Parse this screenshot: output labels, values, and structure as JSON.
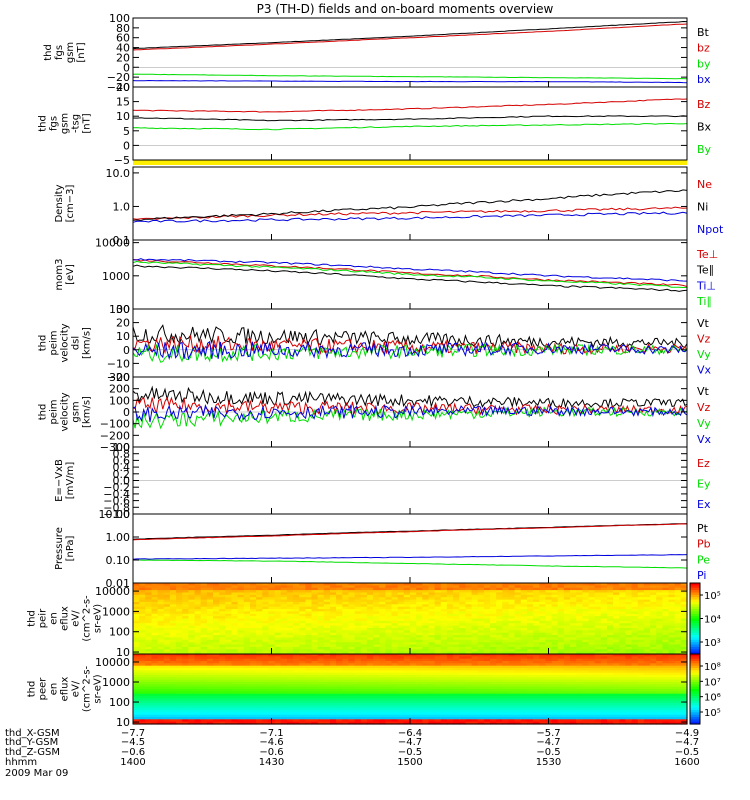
{
  "title": "P3 (TH-D) fields and on-board moments overview",
  "colors": {
    "black": "#000000",
    "red": "#d40000",
    "green": "#00dd00",
    "blue": "#0000dd",
    "yellow": "#ffee00"
  },
  "chart_data": [
    {
      "type": "line",
      "ylabel": [
        "thd",
        "fgs",
        "gsm",
        "[nT]"
      ],
      "ylim": [
        -40,
        100
      ],
      "yticks": [
        100,
        80,
        60,
        40,
        20,
        0,
        -20,
        -40
      ],
      "ytick_labels": [
        "100",
        "80",
        "60",
        "40",
        "20",
        "0",
        "−20",
        "−40"
      ],
      "series": [
        {
          "name": "Bt",
          "color": "black",
          "values": [
            38,
            50,
            63,
            78,
            93
          ]
        },
        {
          "name": "bz",
          "color": "red",
          "values": [
            35,
            47,
            60,
            73,
            88
          ]
        },
        {
          "name": "by",
          "color": "green",
          "values": [
            -14,
            -17,
            -19,
            -21,
            -23
          ]
        },
        {
          "name": "bx",
          "color": "blue",
          "values": [
            -27,
            -28,
            -29,
            -29,
            -31
          ]
        }
      ]
    },
    {
      "type": "line",
      "ylabel": [
        "thd",
        "fgs",
        "gsm",
        "-tsg",
        "[nT]"
      ],
      "ylim": [
        -5,
        20
      ],
      "yticks": [
        20,
        15,
        10,
        5,
        0,
        -5
      ],
      "ytick_labels": [
        "20",
        "15",
        "10",
        "5",
        "0",
        "−5"
      ],
      "series": [
        {
          "name": "Bz",
          "color": "red",
          "values": [
            12,
            11.5,
            12.5,
            14,
            16
          ]
        },
        {
          "name": "Bx",
          "color": "black",
          "values": [
            9.5,
            8.5,
            9,
            10,
            10
          ]
        },
        {
          "name": "By",
          "color": "green",
          "values": [
            6,
            5.5,
            6.5,
            7,
            7.5
          ]
        }
      ]
    },
    {
      "type": "line",
      "ylabel": [
        "Density",
        "[cm−3]"
      ],
      "yscale": "log",
      "ylim": [
        0.1,
        15
      ],
      "yticks": [
        10,
        1,
        0.1
      ],
      "ytick_labels": [
        "10.0",
        "1.0",
        "0.1"
      ],
      "series": [
        {
          "name": "Ne",
          "color": "red",
          "values": [
            0.4,
            0.55,
            0.65,
            0.75,
            0.9
          ]
        },
        {
          "name": "Ni",
          "color": "black",
          "values": [
            0.4,
            0.6,
            0.95,
            1.7,
            3
          ]
        },
        {
          "name": "Npot",
          "color": "blue",
          "values": [
            0.35,
            0.4,
            0.45,
            0.55,
            0.65
          ]
        }
      ]
    },
    {
      "type": "line",
      "ylabel": [
        "mom3",
        "[eV]"
      ],
      "yscale": "log",
      "ylim": [
        100,
        12000
      ],
      "yticks": [
        10000,
        1000,
        100
      ],
      "ytick_labels": [
        "10000",
        "1000",
        "100"
      ],
      "series": [
        {
          "name": "Te⊥",
          "color": "red",
          "values": [
            3000,
            2000,
            1200,
            750,
            500
          ]
        },
        {
          "name": "Te∥",
          "color": "black",
          "values": [
            2000,
            1400,
            800,
            500,
            350
          ]
        },
        {
          "name": "Ti⊥",
          "color": "blue",
          "values": [
            3200,
            2500,
            1600,
            1000,
            700
          ]
        },
        {
          "name": "Ti∥",
          "color": "green",
          "values": [
            2600,
            1800,
            1100,
            700,
            450
          ]
        }
      ]
    },
    {
      "type": "line",
      "ylabel": [
        "thd",
        "peim",
        "velocity",
        "dsl",
        "[km/s]"
      ],
      "ylim": [
        -20,
        30
      ],
      "yticks": [
        30,
        20,
        10,
        0,
        -10,
        -20
      ],
      "ytick_labels": [
        "30",
        "20",
        "10",
        "0",
        "−10",
        "−20"
      ],
      "series": [
        {
          "name": "Vt",
          "color": "black",
          "values": [
            12,
            10,
            8,
            6,
            5
          ]
        },
        {
          "name": "Vz",
          "color": "red",
          "values": [
            5,
            3,
            2,
            1,
            1
          ]
        },
        {
          "name": "Vy",
          "color": "green",
          "values": [
            -3,
            -2,
            -1,
            0,
            0
          ]
        },
        {
          "name": "Vx",
          "color": "blue",
          "values": [
            -1,
            0,
            0,
            1,
            0
          ]
        }
      ]
    },
    {
      "type": "line",
      "ylabel": [
        "thd",
        "peim",
        "velocity",
        "gsm",
        "[km/s]"
      ],
      "ylim": [
        -300,
        300
      ],
      "yticks": [
        300,
        200,
        100,
        0,
        -100,
        -200,
        -300
      ],
      "ytick_labels": [
        "300",
        "200",
        "100",
        "0",
        "−100",
        "−200",
        "−300"
      ],
      "series": [
        {
          "name": "Vt",
          "color": "black",
          "values": [
            150,
            120,
            100,
            80,
            80
          ]
        },
        {
          "name": "Vz",
          "color": "red",
          "values": [
            60,
            40,
            30,
            20,
            20
          ]
        },
        {
          "name": "Vy",
          "color": "green",
          "values": [
            -80,
            -40,
            -20,
            0,
            0
          ]
        },
        {
          "name": "Vx",
          "color": "blue",
          "values": [
            -20,
            0,
            0,
            10,
            0
          ]
        }
      ]
    },
    {
      "type": "line",
      "ylabel": [
        "E=−VxB",
        "[mV/m]"
      ],
      "ylim": [
        -1,
        1
      ],
      "yticks": [
        1,
        0.8,
        0.6,
        0.4,
        0.2,
        0,
        -0.2,
        -0.4,
        -0.6,
        -0.8,
        -1
      ],
      "ytick_labels": [
        "1.0",
        "0.8",
        "0.6",
        "0.4",
        "0.2",
        "0.0",
        "−0.2",
        "−0.4",
        "−0.6",
        "−0.8",
        "−1.0"
      ],
      "series": [
        {
          "name": "Ez",
          "color": "red",
          "values": []
        },
        {
          "name": "Ey",
          "color": "green",
          "values": []
        },
        {
          "name": "Ex",
          "color": "blue",
          "values": []
        }
      ]
    },
    {
      "type": "line",
      "ylabel": [
        "Pressure",
        "[nPa]"
      ],
      "yscale": "log",
      "ylim": [
        0.01,
        10
      ],
      "yticks": [
        10,
        1,
        0.1,
        0.01
      ],
      "ytick_labels": [
        "10.00",
        "1.00",
        "0.10",
        "0.01"
      ],
      "series": [
        {
          "name": "Pt",
          "color": "black",
          "values": [
            0.8,
            1.2,
            1.8,
            2.6,
            3.8
          ]
        },
        {
          "name": "Pb",
          "color": "red",
          "values": [
            0.75,
            1.1,
            1.7,
            2.5,
            3.7
          ]
        },
        {
          "name": "Pe",
          "color": "green",
          "values": [
            0.1,
            0.09,
            0.07,
            0.055,
            0.045
          ]
        },
        {
          "name": "Pi",
          "color": "blue",
          "values": [
            0.11,
            0.12,
            0.13,
            0.15,
            0.17
          ]
        }
      ]
    },
    {
      "type": "heatmap",
      "ylabel": [
        "thd",
        "peir",
        "en",
        "eflux",
        "eV/",
        "(cm^2-s-",
        "sr-eV)"
      ],
      "yscale": "log",
      "ylim": [
        8,
        25000
      ],
      "yticks": [
        10000,
        1000,
        100,
        10
      ],
      "ytick_labels": [
        "10000",
        "1000",
        "100",
        "10"
      ],
      "colorbar": {
        "ticks": [
          "10⁵",
          "10⁴",
          "10³"
        ],
        "tick_values": [
          100000,
          10000,
          1000
        ]
      }
    },
    {
      "type": "heatmap",
      "ylabel": [
        "thd",
        "peer",
        "en",
        "eflux",
        "eV/",
        "(cm^2-s-",
        "sr-eV)"
      ],
      "yscale": "log",
      "ylim": [
        8,
        25000
      ],
      "yticks": [
        10000,
        1000,
        100,
        10
      ],
      "ytick_labels": [
        "10000",
        "1000",
        "100",
        "10"
      ],
      "colorbar": {
        "ticks": [
          "10⁸",
          "10⁷",
          "10⁶",
          "10⁵"
        ],
        "tick_values": [
          100000000,
          10000000,
          1000000,
          100000
        ]
      }
    }
  ],
  "xaxis": {
    "rows": [
      {
        "label": "thd_X-GSM",
        "values": [
          "−7.7",
          "−7.1",
          "−6.4",
          "−5.7",
          "−4.9"
        ]
      },
      {
        "label": "thd_Y-GSM",
        "values": [
          "−4.5",
          "−4.6",
          "−4.7",
          "−4.7",
          "−4.7"
        ]
      },
      {
        "label": "thd_Z-GSM",
        "values": [
          "−0.6",
          "−0.6",
          "−0.5",
          "−0.5",
          "−0.5"
        ]
      },
      {
        "label": "hhmm",
        "values": [
          "1400",
          "1430",
          "1500",
          "1530",
          "1600"
        ]
      }
    ],
    "date": "2009 Mar 09"
  }
}
